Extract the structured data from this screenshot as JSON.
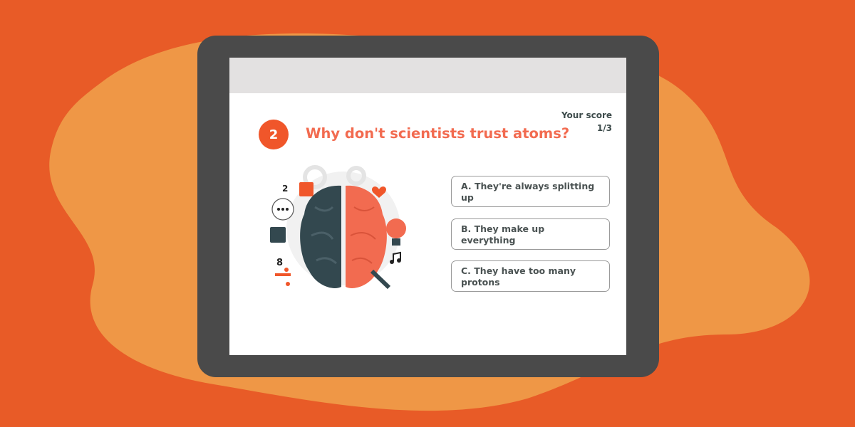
{
  "colors": {
    "background": "#E85B27",
    "blob": "#EF9746",
    "tablet": "#4A4A4A",
    "accent": "#F0562A",
    "question": "#F26B50",
    "brain_left": "#33484F",
    "brain_right": "#F26B50"
  },
  "quiz": {
    "question_number": "2",
    "question": "Why don't scientists trust atoms?",
    "score_label": "Your score",
    "score_value": "1/3",
    "options": [
      {
        "label": "A. They're always splitting up"
      },
      {
        "label": "B. They make up everything"
      },
      {
        "label": "C. They have too many protons"
      }
    ]
  },
  "illustration": {
    "icon": "brain-icon",
    "numbers": [
      "2",
      "8"
    ]
  }
}
